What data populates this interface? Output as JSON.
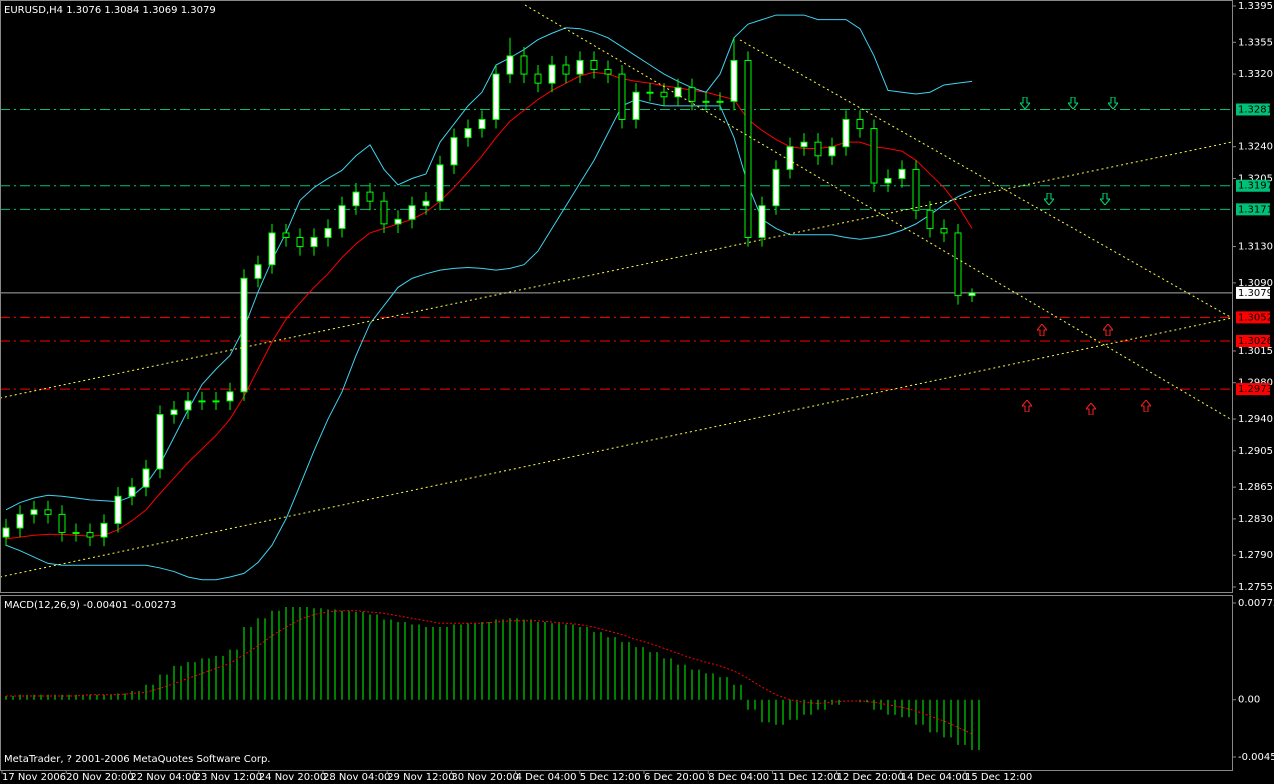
{
  "chart_data": [
    {
      "type": "candlestick",
      "title": "EURUSD,H4 1.3076 1.3084 1.3069 1.3079",
      "ylim": [
        1.2755,
        1.3395
      ],
      "yticks": [
        1.3395,
        1.3355,
        {
          "value": 1.332,
          "label": "1.3320"
        },
        {
          "value": 1.324,
          "label": "1.3240"
        },
        1.3205,
        {
          "value": 1.313,
          "label": "1.3130"
        },
        {
          "value": 1.309,
          "label": "1.3090"
        },
        1.3015,
        {
          "value": 1.298,
          "label": "1.2980"
        },
        {
          "value": 1.294,
          "label": "1.2940"
        },
        1.2905,
        1.2865,
        {
          "value": 1.283,
          "label": "1.2830"
        },
        {
          "value": 1.279,
          "label": "1.2790"
        },
        1.2755
      ],
      "time_labels": [
        "17 Nov 2006",
        "20 Nov 20:00",
        "22 Nov 04:00",
        "23 Nov 12:00",
        "24 Nov 20:00",
        "28 Nov 04:00",
        "29 Nov 12:00",
        "30 Nov 20:00",
        "4 Dec 04:00",
        "5 Dec 12:00",
        "6 Dec 20:00",
        "8 Dec 04:00",
        "11 Dec 12:00",
        "12 Dec 20:00",
        "14 Dec 04:00",
        "15 Dec 12:00"
      ],
      "candle_color": "#00ff00",
      "up_fill": "#ffffff",
      "down_fill": "#000000",
      "open": [
        1.281,
        1.282,
        1.2835,
        1.284,
        1.2835,
        1.2815,
        1.2815,
        1.281,
        1.2825,
        1.2855,
        1.2865,
        1.2885,
        1.2945,
        1.295,
        1.296,
        1.296,
        1.296,
        1.297,
        1.3095,
        1.311,
        1.3145,
        1.314,
        1.313,
        1.314,
        1.315,
        1.3175,
        1.319,
        1.318,
        1.3155,
        1.316,
        1.3175,
        1.318,
        1.322,
        1.325,
        1.326,
        1.327,
        1.332,
        1.334,
        1.332,
        1.331,
        1.333,
        1.332,
        1.3335,
        1.3325,
        1.332,
        1.327,
        1.33,
        1.33,
        1.3295,
        1.3305,
        1.329,
        1.329,
        1.329,
        1.3335,
        1.314,
        1.3175,
        1.3215,
        1.324,
        1.3245,
        1.323,
        1.324,
        1.327,
        1.326,
        1.32,
        1.3205,
        1.3215,
        1.317,
        1.315,
        1.3145,
        1.3076
      ],
      "high": [
        1.283,
        1.2845,
        1.285,
        1.285,
        1.2845,
        1.2825,
        1.2825,
        1.2835,
        1.2865,
        1.2875,
        1.2895,
        1.2955,
        1.296,
        1.297,
        1.297,
        1.297,
        1.298,
        1.3105,
        1.312,
        1.3155,
        1.3155,
        1.315,
        1.315,
        1.316,
        1.3185,
        1.32,
        1.32,
        1.319,
        1.317,
        1.3185,
        1.319,
        1.323,
        1.326,
        1.327,
        1.328,
        1.333,
        1.336,
        1.335,
        1.333,
        1.334,
        1.334,
        1.3345,
        1.3345,
        1.3335,
        1.333,
        1.331,
        1.331,
        1.331,
        1.3315,
        1.3315,
        1.33,
        1.33,
        1.336,
        1.3345,
        1.3185,
        1.3225,
        1.325,
        1.3255,
        1.3255,
        1.325,
        1.328,
        1.328,
        1.327,
        1.3215,
        1.3225,
        1.3225,
        1.318,
        1.316,
        1.3155,
        1.3084
      ],
      "low": [
        1.28,
        1.281,
        1.2825,
        1.2825,
        1.2805,
        1.2805,
        1.28,
        1.28,
        1.2815,
        1.2845,
        1.2855,
        1.2875,
        1.2935,
        1.294,
        1.295,
        1.295,
        1.295,
        1.296,
        1.3085,
        1.31,
        1.313,
        1.312,
        1.312,
        1.313,
        1.314,
        1.3165,
        1.317,
        1.3145,
        1.3145,
        1.315,
        1.3165,
        1.317,
        1.321,
        1.324,
        1.325,
        1.326,
        1.331,
        1.331,
        1.33,
        1.33,
        1.331,
        1.331,
        1.3315,
        1.331,
        1.326,
        1.326,
        1.329,
        1.3285,
        1.3285,
        1.328,
        1.328,
        1.328,
        1.328,
        1.313,
        1.313,
        1.3165,
        1.3205,
        1.323,
        1.322,
        1.322,
        1.323,
        1.325,
        1.319,
        1.319,
        1.3195,
        1.316,
        1.314,
        1.3135,
        1.3066,
        1.3069
      ],
      "close": [
        1.282,
        1.2835,
        1.284,
        1.2835,
        1.2815,
        1.2815,
        1.281,
        1.2825,
        1.2855,
        1.2865,
        1.2885,
        1.2945,
        1.295,
        1.296,
        1.296,
        1.296,
        1.297,
        1.3095,
        1.311,
        1.3145,
        1.314,
        1.313,
        1.314,
        1.315,
        1.3175,
        1.319,
        1.318,
        1.3155,
        1.316,
        1.3175,
        1.318,
        1.322,
        1.325,
        1.326,
        1.327,
        1.332,
        1.334,
        1.332,
        1.331,
        1.333,
        1.332,
        1.3335,
        1.3325,
        1.332,
        1.327,
        1.33,
        1.33,
        1.3295,
        1.3305,
        1.329,
        1.329,
        1.329,
        1.3335,
        1.314,
        1.3175,
        1.3215,
        1.324,
        1.3245,
        1.323,
        1.324,
        1.327,
        1.326,
        1.32,
        1.3205,
        1.3215,
        1.317,
        1.315,
        1.3145,
        1.3076,
        1.3079
      ],
      "lines": [
        {
          "color": "#ff0000",
          "values": [
            1.2808,
            1.281,
            1.2812,
            1.2813,
            1.2813,
            1.2812,
            1.2811,
            1.2812,
            1.2818,
            1.2828,
            1.284,
            1.2858,
            1.2875,
            1.2892,
            1.2907,
            1.2922,
            1.294,
            1.2965,
            1.2995,
            1.3025,
            1.305,
            1.3068,
            1.3085,
            1.31,
            1.3118,
            1.3133,
            1.3145,
            1.315,
            1.3155,
            1.316,
            1.3168,
            1.318,
            1.3195,
            1.3212,
            1.323,
            1.325,
            1.3268,
            1.328,
            1.3292,
            1.3302,
            1.331,
            1.3318,
            1.3322,
            1.332,
            1.3315,
            1.3312,
            1.331,
            1.3307,
            1.3305,
            1.3302,
            1.33,
            1.3296,
            1.3292,
            1.327,
            1.3258,
            1.3248,
            1.324,
            1.3238,
            1.3238,
            1.324,
            1.3245,
            1.3245,
            1.324,
            1.3238,
            1.3235,
            1.3225,
            1.321,
            1.3195,
            1.3175,
            1.315
          ]
        },
        {
          "color": "#3fd3f0",
          "values": [
            1.284,
            1.2848,
            1.2853,
            1.2856,
            1.2855,
            1.2853,
            1.2851,
            1.285,
            1.2849,
            1.2855,
            1.2868,
            1.289,
            1.292,
            1.295,
            1.2978,
            1.2995,
            1.301,
            1.304,
            1.308,
            1.3115,
            1.3145,
            1.3181,
            1.3195,
            1.3205,
            1.3214,
            1.323,
            1.3242,
            1.3215,
            1.3198,
            1.3205,
            1.321,
            1.3245,
            1.3265,
            1.3285,
            1.33,
            1.333,
            1.3338,
            1.3347,
            1.3358,
            1.3365,
            1.3371,
            1.337,
            1.3366,
            1.336,
            1.335,
            1.334,
            1.333,
            1.332,
            1.3312,
            1.3305,
            1.33,
            1.332,
            1.336,
            1.3375,
            1.338,
            1.3385,
            1.3385,
            1.3385,
            1.338,
            1.338,
            1.338,
            1.337,
            1.334,
            1.3302,
            1.33,
            1.3298,
            1.33,
            1.3308,
            1.331,
            1.3312
          ]
        },
        {
          "color": "#3fd3f0",
          "values": [
            1.2801,
            1.2795,
            1.2788,
            1.2781,
            1.2779,
            1.2779,
            1.2779,
            1.2779,
            1.2779,
            1.2779,
            1.2779,
            1.2776,
            1.2772,
            1.2766,
            1.2763,
            1.2763,
            1.2766,
            1.277,
            1.2782,
            1.2801,
            1.283,
            1.2867,
            1.2905,
            1.294,
            1.297,
            1.301,
            1.3045,
            1.3065,
            1.3085,
            1.3095,
            1.31,
            1.3104,
            1.3106,
            1.3107,
            1.3106,
            1.3104,
            1.3106,
            1.311,
            1.3125,
            1.315,
            1.3175,
            1.32,
            1.3225,
            1.3255,
            1.3285,
            1.3292,
            1.3288,
            1.3285,
            1.3285,
            1.3285,
            1.3285,
            1.3285,
            1.325,
            1.3198,
            1.316,
            1.315,
            1.3143,
            1.3143,
            1.3143,
            1.3143,
            1.314,
            1.3138,
            1.314,
            1.3143,
            1.3148,
            1.3155,
            1.3165,
            1.3176,
            1.3185,
            1.3192
          ]
        }
      ],
      "levels": [
        {
          "value": 1.3281,
          "color": "#00c078"
        },
        {
          "value": 1.3197,
          "color": "#00c078"
        },
        {
          "value": 1.3171,
          "color": "#00c078"
        },
        {
          "value": 1.3052,
          "color": "#ff0000"
        },
        {
          "value": 1.3026,
          "color": "#ff0000"
        },
        {
          "value": 1.2973,
          "color": "#ff0000"
        }
      ]
    },
    {
      "type": "bar",
      "title": "MACD(12,26,9) -0.00401 -0.00273",
      "color": "#00ff00",
      "ylim": [
        -0.00457,
        0.00772
      ],
      "yticks": [
        0.00772,
        {
          "value": 0,
          "label": "0.00"
        },
        -0.00457
      ],
      "values": [
        0.0003,
        0.0004,
        0.0004,
        0.0004,
        0.0004,
        0.0004,
        0.0004,
        0.0004,
        0.0005,
        0.0007,
        0.0012,
        0.002,
        0.0027,
        0.003,
        0.0033,
        0.0035,
        0.004,
        0.0058,
        0.0065,
        0.0071,
        0.0074,
        0.0074,
        0.0073,
        0.0072,
        0.0071,
        0.007,
        0.0068,
        0.0064,
        0.0062,
        0.006,
        0.0058,
        0.0058,
        0.006,
        0.0061,
        0.0062,
        0.0064,
        0.0065,
        0.0064,
        0.0062,
        0.0061,
        0.006,
        0.0058,
        0.0054,
        0.005,
        0.0046,
        0.0042,
        0.0038,
        0.0033,
        0.0028,
        0.0024,
        0.0021,
        0.0018,
        0.0012,
        -0.0008,
        -0.0018,
        -0.002,
        -0.0016,
        -0.0012,
        -0.0008,
        -0.0004,
        0.0,
        -0.0002,
        -0.0008,
        -0.0012,
        -0.0014,
        -0.002,
        -0.0026,
        -0.003,
        -0.0036,
        -0.00401
      ],
      "signal": {
        "color": "#ff0000",
        "values": [
          0.0003,
          0.0003,
          0.0003,
          0.0003,
          0.0003,
          0.0003,
          0.0004,
          0.0004,
          0.0004,
          0.0005,
          0.0006,
          0.0009,
          0.0013,
          0.0017,
          0.0021,
          0.0025,
          0.0029,
          0.0036,
          0.0043,
          0.0051,
          0.0058,
          0.0064,
          0.0068,
          0.007,
          0.0071,
          0.0071,
          0.007,
          0.0069,
          0.0067,
          0.0065,
          0.0063,
          0.0061,
          0.0061,
          0.0061,
          0.0061,
          0.0062,
          0.0063,
          0.0063,
          0.0063,
          0.0062,
          0.0061,
          0.006,
          0.0058,
          0.0055,
          0.0052,
          0.0048,
          0.0045,
          0.0041,
          0.0037,
          0.0033,
          0.003,
          0.0027,
          0.0023,
          0.0017,
          0.001,
          0.0004,
          0.0,
          -0.0002,
          -0.0003,
          -0.0002,
          -0.0001,
          -0.0001,
          -0.0002,
          -0.0004,
          -0.0006,
          -0.0009,
          -0.0013,
          -0.0017,
          -0.0022,
          -0.00273
        ]
      }
    }
  ],
  "footer": "MetaTrader, ? 2001-2006 MetaQuotes Software Corp."
}
